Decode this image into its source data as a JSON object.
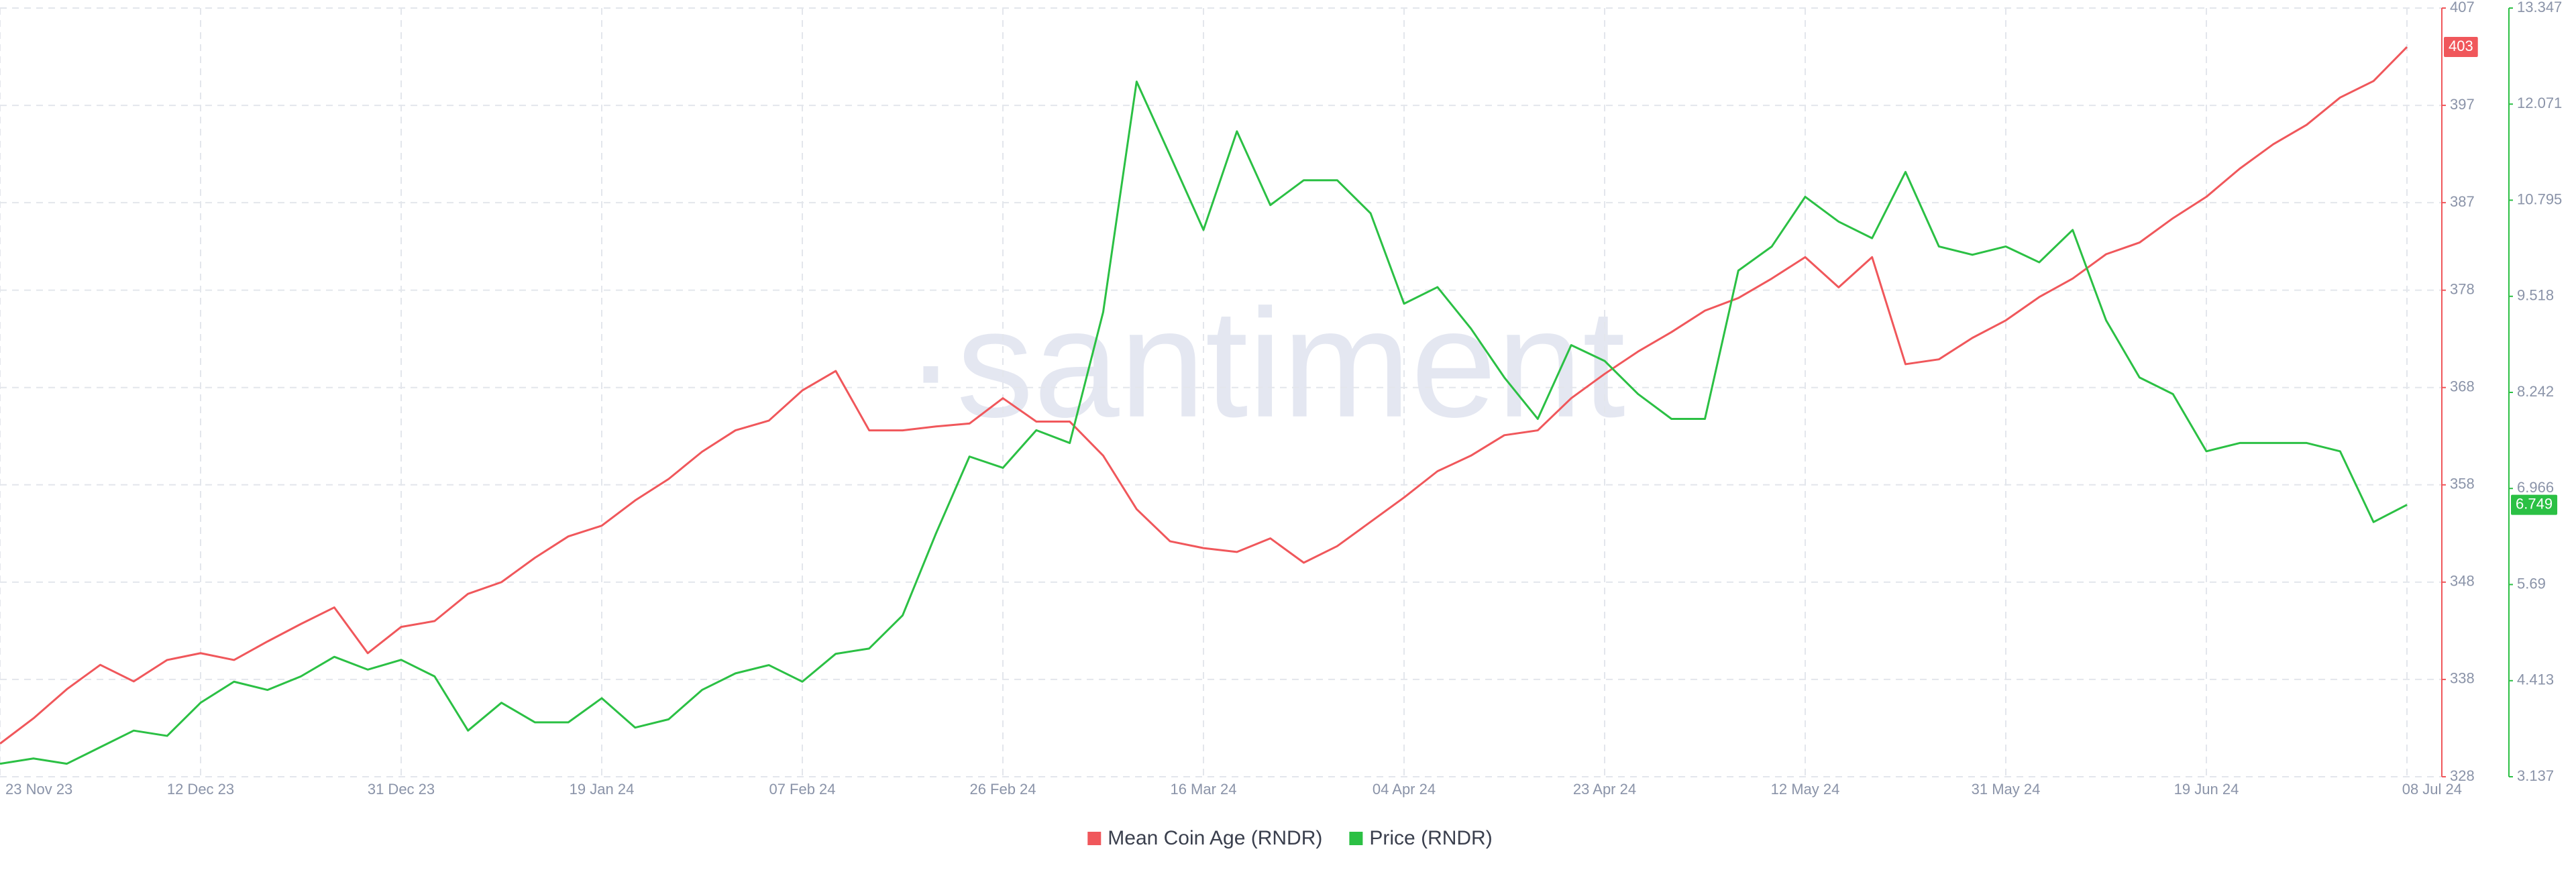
{
  "chart_data": {
    "type": "line",
    "watermark": "·santiment",
    "categories": [
      "23 Nov 23",
      null,
      null,
      null,
      null,
      null,
      "12 Dec 23",
      null,
      null,
      null,
      null,
      null,
      "31 Dec 23",
      null,
      null,
      null,
      null,
      null,
      "19 Jan 24",
      null,
      null,
      null,
      null,
      null,
      "07 Feb 24",
      null,
      null,
      null,
      null,
      null,
      "26 Feb 24",
      null,
      null,
      null,
      null,
      null,
      "16 Mar 24",
      null,
      null,
      null,
      null,
      null,
      "04 Apr 24",
      null,
      null,
      null,
      null,
      null,
      "23 Apr 24",
      null,
      null,
      null,
      null,
      null,
      "12 May 24",
      null,
      null,
      null,
      null,
      null,
      "31 May 24",
      null,
      null,
      null,
      null,
      null,
      "19 Jun 24",
      null,
      null,
      null,
      null,
      null,
      "08 Jul 24"
    ],
    "series": [
      {
        "name": "Mean Coin Age (RNDR)",
        "color": "#f0575b",
        "axis": "y",
        "values": [
          331.4,
          334,
          337,
          339.5,
          337.8,
          340,
          340.7,
          340,
          341.9,
          343.7,
          345.4,
          340.7,
          343.4,
          344,
          346.8,
          348,
          350.5,
          352.7,
          353.8,
          356.4,
          358.6,
          361.4,
          363.6,
          364.6,
          367.7,
          369.7,
          363.6,
          363.6,
          364,
          364.3,
          366.9,
          364.5,
          364.5,
          361,
          355.5,
          352.2,
          351.5,
          351.1,
          352.5,
          350,
          351.7,
          354.2,
          356.7,
          359.4,
          361,
          363.1,
          363.6,
          366.9,
          369.4,
          371.7,
          373.7,
          375.9,
          377.2,
          379.2,
          381.4,
          378.3,
          381.4,
          370.4,
          370.9,
          373.1,
          374.9,
          377.3,
          379.2,
          381.7,
          382.9,
          385.4,
          387.6,
          390.5,
          393,
          395,
          397.8,
          399.5,
          403
        ]
      },
      {
        "name": "Price (RNDR)",
        "color": "#2bc044",
        "axis": "y2",
        "values": [
          3.31,
          3.38,
          3.31,
          3.53,
          3.75,
          3.68,
          4.12,
          4.4,
          4.29,
          4.47,
          4.73,
          4.56,
          4.69,
          4.47,
          3.75,
          4.12,
          3.86,
          3.86,
          4.18,
          3.79,
          3.9,
          4.29,
          4.51,
          4.62,
          4.4,
          4.77,
          4.84,
          5.28,
          6.37,
          7.39,
          7.24,
          7.74,
          7.57,
          9.31,
          12.37,
          11.39,
          10.4,
          11.71,
          10.73,
          11.06,
          11.06,
          10.62,
          9.42,
          9.64,
          9.09,
          8.44,
          7.89,
          8.87,
          8.66,
          8.22,
          7.89,
          7.89,
          9.86,
          10.18,
          10.84,
          10.51,
          10.29,
          11.17,
          10.18,
          10.07,
          10.18,
          9.97,
          10.4,
          9.2,
          8.44,
          8.22,
          7.46,
          7.57,
          7.57,
          7.57,
          7.46,
          6.52,
          6.749
        ]
      }
    ],
    "ylim": [
      328,
      407
    ],
    "yticks": [
      328,
      338,
      348,
      358,
      368,
      378,
      387,
      397,
      407
    ],
    "y2lim": [
      3.137,
      13.347
    ],
    "y2ticks": [
      3.137,
      4.413,
      5.69,
      6.966,
      8.242,
      9.518,
      10.795,
      12.071,
      13.347
    ],
    "grid": true,
    "legend": "bottom"
  }
}
